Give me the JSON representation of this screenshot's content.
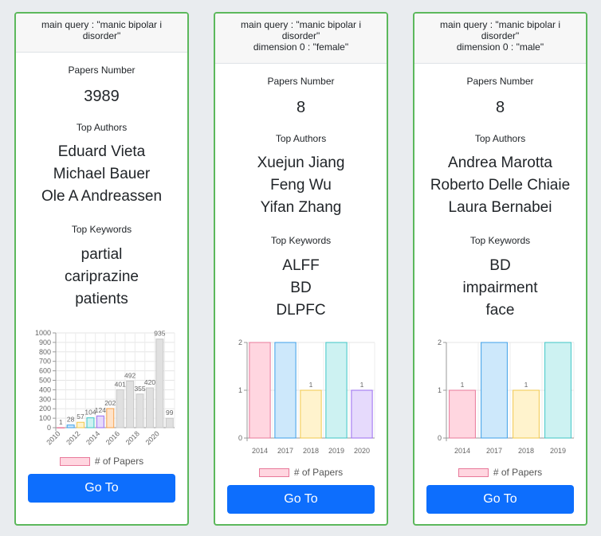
{
  "colors": {
    "card_border": "#5cb85c",
    "button": "#0d6efd",
    "bar_fills": [
      "#ffd6e0",
      "#cde8fb",
      "#fff3cd",
      "#cdf2f2",
      "#e6dafc",
      "#ffe3c9",
      "#e0e0e0"
    ],
    "bar_strokes": [
      "#e8799a",
      "#3ea0e8",
      "#f2c94c",
      "#3fc6c6",
      "#9b6ef0",
      "#f5a04a",
      "#c8c8c8"
    ]
  },
  "cards": [
    {
      "header_lines": [
        "main query : \"manic bipolar i",
        "disorder\""
      ],
      "papers_label": "Papers Number",
      "papers_count": "3989",
      "authors_label": "Top Authors",
      "authors": [
        "Eduard Vieta",
        "Michael Bauer",
        "Ole A Andreassen"
      ],
      "keywords_label": "Top Keywords",
      "keywords": [
        "partial",
        "cariprazine",
        "patients"
      ],
      "legend_label": "# of Papers",
      "button_label": "Go To"
    },
    {
      "header_lines": [
        "main query : \"manic bipolar i",
        "disorder\"",
        "dimension 0 : \"female\""
      ],
      "papers_label": "Papers Number",
      "papers_count": "8",
      "authors_label": "Top Authors",
      "authors": [
        "Xuejun Jiang",
        "Feng Wu",
        "Yifan Zhang"
      ],
      "keywords_label": "Top Keywords",
      "keywords": [
        "ALFF",
        "BD",
        "DLPFC"
      ],
      "legend_label": "# of Papers",
      "button_label": "Go To"
    },
    {
      "header_lines": [
        "main query : \"manic bipolar i",
        "disorder\"",
        "dimension 0 : \"male\""
      ],
      "papers_label": "Papers Number",
      "papers_count": "8",
      "authors_label": "Top Authors",
      "authors": [
        "Andrea Marotta",
        "Roberto Delle Chiaie",
        "Laura Bernabei"
      ],
      "keywords_label": "Top Keywords",
      "keywords": [
        "BD",
        "impairment",
        "face"
      ],
      "legend_label": "# of Papers",
      "button_label": "Go To"
    }
  ],
  "chart_data": [
    {
      "type": "bar",
      "categories": [
        "2010",
        "2011",
        "2012",
        "2013",
        "2014",
        "2015",
        "2016",
        "2017",
        "2018",
        "2019",
        "2020",
        "2021"
      ],
      "x_tick_labels": [
        "2010",
        "2012",
        "2014",
        "2016",
        "2018",
        "2020"
      ],
      "series": [
        {
          "name": "# of Papers",
          "values": [
            1,
            28,
            57,
            104,
            124,
            202,
            401,
            492,
            355,
            420,
            935,
            99
          ]
        }
      ],
      "data_labels": [
        "1",
        "28",
        "57",
        "104",
        "124",
        "202",
        "401",
        "492",
        "355",
        "420",
        "935",
        "99"
      ],
      "y_ticks": [
        "0",
        "100",
        "200",
        "300",
        "400",
        "500",
        "600",
        "700",
        "800",
        "900",
        "1000"
      ],
      "ylim": [
        0,
        1000
      ],
      "grid": true,
      "legend": "bottom"
    },
    {
      "type": "bar",
      "categories": [
        "2014",
        "2017",
        "2018",
        "2019",
        "2020"
      ],
      "series": [
        {
          "name": "# of Papers",
          "values": [
            2,
            2,
            1,
            2,
            1
          ]
        }
      ],
      "data_labels": [
        "",
        "",
        "1",
        "",
        "1"
      ],
      "y_ticks": [
        "0",
        "1",
        "2"
      ],
      "ylim": [
        0,
        2
      ],
      "grid": true,
      "legend": "bottom"
    },
    {
      "type": "bar",
      "categories": [
        "2014",
        "2017",
        "2018",
        "2019"
      ],
      "series": [
        {
          "name": "# of Papers",
          "values": [
            1,
            2,
            1,
            2
          ]
        }
      ],
      "data_labels": [
        "1",
        "",
        "1",
        ""
      ],
      "y_ticks": [
        "0",
        "1",
        "2"
      ],
      "ylim": [
        0,
        2
      ],
      "grid": true,
      "legend": "bottom"
    }
  ]
}
